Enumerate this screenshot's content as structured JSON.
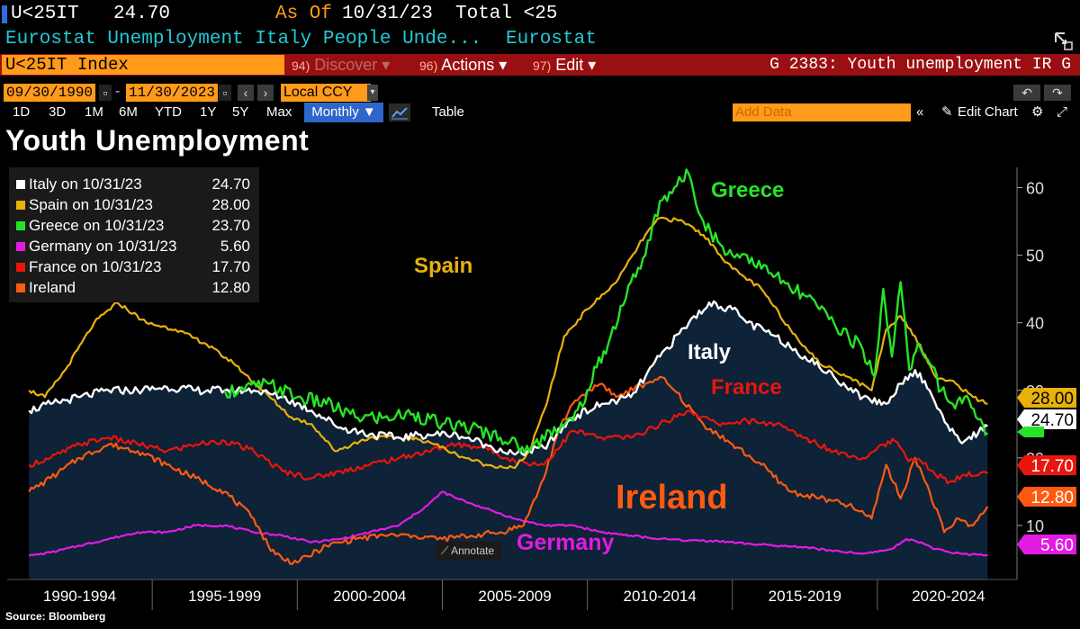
{
  "header": {
    "ticker": "U<25IT",
    "last_value": "24.70",
    "as_of_label": "As Of",
    "as_of_date": "10/31/23",
    "total_label": "Total <25",
    "description": "Eurostat Unemployment Italy People Unde...",
    "source_name": "Eurostat"
  },
  "toolbar": {
    "index_name": "U<25IT Index",
    "discover": {
      "num": "94)",
      "label": "Discover"
    },
    "actions": {
      "num": "96)",
      "label": "Actions"
    },
    "edit": {
      "num": "97)",
      "label": "Edit"
    },
    "chart_ref": "G 2383: Youth unemployment IR G",
    "start_date": "09/30/1990",
    "end_date": "11/30/2023",
    "currency": "Local CCY",
    "ranges": [
      "1D",
      "3D",
      "1M",
      "6M",
      "YTD",
      "1Y",
      "5Y",
      "Max"
    ],
    "frequency": "Monthly",
    "table_label": "Table",
    "add_data_placeholder": "Add Data",
    "edit_chart_label": "Edit Chart",
    "annotate_label": "Annotate"
  },
  "footer": {
    "source": "Source: Bloomberg"
  },
  "colors": {
    "italy": "#ffffff",
    "spain": "#e8b10c",
    "greece": "#27e327",
    "germany": "#e21be2",
    "france": "#e8160c",
    "ireland": "#ff5a10",
    "area": "#0e2238"
  },
  "chart_data": {
    "type": "line",
    "title": "Youth Unemployment",
    "x_unit": "year",
    "xlim": [
      1990.0,
      2024.75
    ],
    "ylim": [
      2,
      63
    ],
    "y_ticks": [
      10,
      20,
      30,
      40,
      50,
      60
    ],
    "x_tick_labels": [
      "1990-1994",
      "1995-1999",
      "2000-2004",
      "2005-2009",
      "2010-2014",
      "2015-2019",
      "2020-2024"
    ],
    "legend": [
      {
        "key": "italy",
        "label": "Italy on 10/31/23",
        "value": "24.70"
      },
      {
        "key": "spain",
        "label": "Spain on 10/31/23",
        "value": "28.00"
      },
      {
        "key": "greece",
        "label": "Greece on 10/31/23",
        "value": "23.70"
      },
      {
        "key": "germany",
        "label": "Germany on 10/31/23",
        "value": "5.60"
      },
      {
        "key": "france",
        "label": "France on 10/31/23",
        "value": "17.70"
      },
      {
        "key": "ireland",
        "label": "Ireland",
        "value": "12.80"
      }
    ],
    "annotations": [
      {
        "key": "greece",
        "text": "Greece"
      },
      {
        "key": "spain",
        "text": "Spain"
      },
      {
        "key": "italy",
        "text": "Italy"
      },
      {
        "key": "france",
        "text": "France"
      },
      {
        "key": "ireland",
        "text": "Ireland"
      },
      {
        "key": "germany",
        "text": "Germany"
      }
    ],
    "last_value_tags": [
      {
        "key": "spain",
        "text": "28.00",
        "value": 28.0
      },
      {
        "key": "italy",
        "text": "24.70",
        "value": 24.7
      },
      {
        "key": "france",
        "text": "17.70",
        "value": 17.7
      },
      {
        "key": "ireland",
        "text": "12.80",
        "value": 12.8
      },
      {
        "key": "germany",
        "text": "5.60",
        "value": 5.6
      }
    ],
    "series": [
      {
        "name": "Italy",
        "key": "italy",
        "x": [
          1990.75,
          1991.5,
          1992.5,
          1993.5,
          1994.5,
          1995.5,
          1996.5,
          1997.5,
          1998.5,
          1999.5,
          2000.5,
          2001.5,
          2002.5,
          2003.5,
          2004.5,
          2005.5,
          2006.5,
          2007.5,
          2008.5,
          2009.5,
          2010.5,
          2011.5,
          2012.5,
          2013.5,
          2014.2,
          2015.0,
          2015.5,
          2016.5,
          2017.5,
          2018.5,
          2019.5,
          2020.3,
          2020.8,
          2021.3,
          2021.8,
          2022.5,
          2023.0,
          2023.8
        ],
        "values": [
          27.0,
          28.0,
          29.0,
          30.0,
          30.0,
          30.5,
          30.0,
          30.0,
          30.0,
          29.0,
          27.0,
          24.5,
          23.5,
          23.0,
          23.5,
          23.5,
          22.0,
          20.5,
          21.5,
          26.0,
          28.0,
          29.0,
          35.0,
          40.0,
          43.0,
          42.0,
          40.0,
          38.0,
          35.0,
          32.0,
          29.0,
          28.0,
          31.0,
          33.0,
          30.0,
          24.0,
          22.5,
          24.7
        ]
      },
      {
        "name": "Spain",
        "key": "spain",
        "x": [
          1990.75,
          1991.3,
          1992.0,
          1993.0,
          1993.8,
          1994.8,
          1995.8,
          1996.8,
          1997.8,
          1998.8,
          1999.8,
          2000.5,
          2001.3,
          2002.5,
          2003.5,
          2004.5,
          2005.5,
          2006.5,
          2007.5,
          2008.0,
          2008.6,
          2009.2,
          2010.0,
          2011.0,
          2012.0,
          2012.5,
          2013.3,
          2014.0,
          2015.0,
          2016.0,
          2017.0,
          2018.0,
          2019.0,
          2019.8,
          2020.3,
          2020.8,
          2021.3,
          2022.0,
          2022.7,
          2023.3,
          2023.8
        ],
        "values": [
          30.0,
          29.0,
          33.0,
          40.0,
          43.0,
          40.0,
          39.0,
          37.0,
          34.0,
          30.0,
          26.0,
          25.0,
          21.0,
          23.0,
          23.0,
          22.5,
          20.5,
          19.0,
          18.5,
          21.0,
          28.0,
          38.0,
          42.0,
          46.0,
          53.0,
          55.5,
          55.0,
          53.0,
          48.0,
          45.0,
          39.0,
          34.0,
          32.0,
          30.0,
          39.0,
          41.0,
          38.0,
          32.0,
          31.0,
          29.0,
          28.0
        ]
      },
      {
        "name": "Greece",
        "key": "greece",
        "x": [
          1997.5,
          1998.0,
          1999.0,
          2000.0,
          2001.0,
          2002.0,
          2003.0,
          2004.0,
          2005.0,
          2006.0,
          2007.0,
          2008.0,
          2008.7,
          2009.5,
          2010.0,
          2010.8,
          2011.5,
          2012.0,
          2012.5,
          2013.0,
          2013.5,
          2014.0,
          2014.5,
          2015.0,
          2015.5,
          2016.0,
          2016.5,
          2017.0,
          2017.5,
          2018.0,
          2018.5,
          2019.0,
          2019.5,
          2019.9,
          2020.2,
          2020.5,
          2020.8,
          2021.1,
          2021.4,
          2021.8,
          2022.2,
          2022.6,
          2023.0,
          2023.4,
          2023.8
        ],
        "values": [
          30.0,
          30.0,
          31.0,
          29.0,
          28.0,
          26.0,
          26.0,
          26.5,
          25.0,
          24.5,
          23.0,
          21.0,
          24.0,
          25.5,
          30.0,
          38.0,
          46.0,
          50.0,
          58.0,
          60.0,
          62.0,
          55.0,
          52.0,
          50.0,
          50.0,
          48.0,
          47.0,
          45.0,
          44.0,
          42.0,
          40.0,
          38.0,
          36.0,
          32.0,
          45.0,
          35.0,
          46.0,
          33.0,
          37.0,
          34.0,
          30.0,
          28.0,
          29.0,
          26.0,
          23.7
        ]
      },
      {
        "name": "Germany",
        "key": "germany",
        "x": [
          1990.75,
          1991.5,
          1992.5,
          1993.5,
          1994.5,
          1995.5,
          1996.5,
          1997.5,
          1998.5,
          1999.5,
          2000.5,
          2001.5,
          2002.5,
          2003.5,
          2004.5,
          2005.0,
          2005.5,
          2006.5,
          2007.5,
          2008.5,
          2009.5,
          2010.5,
          2011.5,
          2012.5,
          2013.5,
          2014.5,
          2015.5,
          2016.5,
          2017.5,
          2018.5,
          2019.5,
          2020.5,
          2021.0,
          2021.5,
          2022.0,
          2022.5,
          2023.0,
          2023.8
        ],
        "values": [
          5.5,
          6.0,
          7.0,
          8.0,
          9.0,
          9.0,
          10.0,
          10.0,
          9.0,
          8.5,
          7.5,
          8.0,
          9.0,
          10.0,
          13.0,
          15.0,
          14.0,
          12.5,
          11.0,
          10.0,
          10.0,
          9.0,
          8.5,
          8.0,
          7.8,
          7.7,
          7.3,
          7.0,
          6.8,
          6.2,
          5.8,
          6.5,
          8.0,
          7.5,
          6.5,
          6.0,
          5.8,
          5.6
        ]
      },
      {
        "name": "France",
        "key": "france",
        "x": [
          1990.75,
          1991.5,
          1992.5,
          1993.5,
          1994.5,
          1995.5,
          1996.5,
          1997.5,
          1998.5,
          1999.5,
          2000.5,
          2001.5,
          2002.5,
          2003.5,
          2004.5,
          2005.5,
          2006.5,
          2007.5,
          2008.5,
          2009.5,
          2010.5,
          2011.5,
          2012.5,
          2013.5,
          2014.5,
          2015.5,
          2016.5,
          2017.5,
          2018.5,
          2019.5,
          2020.2,
          2020.6,
          2021.0,
          2021.5,
          2022.0,
          2022.5,
          2023.0,
          2023.8
        ],
        "values": [
          19.0,
          20.0,
          22.0,
          23.0,
          22.0,
          21.0,
          22.0,
          22.5,
          21.0,
          18.0,
          17.0,
          18.0,
          19.0,
          20.0,
          21.0,
          22.0,
          21.5,
          19.5,
          19.0,
          24.0,
          23.0,
          23.0,
          25.0,
          27.0,
          25.0,
          25.5,
          25.0,
          23.0,
          21.0,
          20.0,
          22.0,
          22.5,
          20.0,
          19.5,
          17.5,
          16.5,
          17.5,
          17.7
        ]
      },
      {
        "name": "Ireland",
        "key": "ireland",
        "x": [
          1990.75,
          1991.5,
          1992.5,
          1993.5,
          1994.5,
          1995.5,
          1996.5,
          1997.5,
          1998.5,
          1999.0,
          1999.5,
          2000.0,
          2001.0,
          2002.0,
          2003.0,
          2004.0,
          2005.0,
          2006.0,
          2007.0,
          2007.8,
          2008.5,
          2009.0,
          2009.5,
          2010.0,
          2010.5,
          2011.0,
          2012.0,
          2012.5,
          2013.0,
          2014.0,
          2015.0,
          2016.0,
          2017.0,
          2018.0,
          2019.0,
          2019.8,
          2020.3,
          2020.8,
          2021.3,
          2021.8,
          2022.3,
          2022.8,
          2023.3,
          2023.8
        ],
        "values": [
          15.0,
          17.0,
          20.0,
          22.0,
          21.0,
          19.0,
          17.0,
          15.0,
          11.0,
          7.0,
          5.0,
          4.5,
          7.0,
          8.0,
          8.5,
          8.5,
          8.0,
          8.5,
          9.0,
          10.0,
          17.0,
          24.0,
          28.0,
          30.0,
          31.0,
          29.0,
          31.0,
          32.0,
          30.0,
          25.0,
          22.0,
          19.0,
          15.0,
          14.0,
          13.0,
          11.0,
          19.0,
          14.0,
          20.0,
          15.0,
          9.0,
          11.0,
          10.0,
          12.8
        ]
      }
    ]
  }
}
